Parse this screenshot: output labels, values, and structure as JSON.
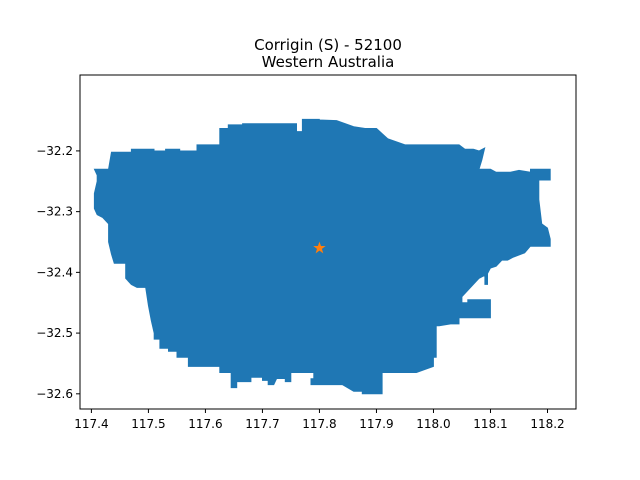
{
  "chart_data": {
    "type": "map",
    "title_line1": "Corrigin (S) - 52100",
    "title_line2": "Western Australia",
    "xlabel": "",
    "ylabel": "",
    "xlim": [
      117.38,
      118.25
    ],
    "ylim": [
      -32.625,
      -32.075
    ],
    "xticks": [
      117.4,
      117.5,
      117.6,
      117.7,
      117.8,
      117.9,
      118.0,
      118.1,
      118.2
    ],
    "xtick_labels": [
      "117.4",
      "117.5",
      "117.6",
      "117.7",
      "117.8",
      "117.9",
      "118.0",
      "118.1",
      "118.2"
    ],
    "yticks": [
      -32.2,
      -32.3,
      -32.4,
      -32.5,
      -32.6
    ],
    "ytick_labels": [
      "−32.2",
      "−32.3",
      "−32.4",
      "−32.5",
      "−32.6"
    ],
    "grid": false,
    "region_color": "#1f77b4",
    "marker_color": "#ff7f0e",
    "marker": {
      "symbol": "star",
      "lon": 117.8,
      "lat": -32.36
    },
    "boundary": [
      [
        117.435,
        -32.202
      ],
      [
        117.47,
        -32.202
      ],
      [
        117.47,
        -32.197
      ],
      [
        117.51,
        -32.197
      ],
      [
        117.51,
        -32.2
      ],
      [
        117.53,
        -32.2
      ],
      [
        117.53,
        -32.197
      ],
      [
        117.555,
        -32.197
      ],
      [
        117.555,
        -32.2
      ],
      [
        117.585,
        -32.2
      ],
      [
        117.585,
        -32.19
      ],
      [
        117.625,
        -32.19
      ],
      [
        117.625,
        -32.163
      ],
      [
        117.64,
        -32.163
      ],
      [
        117.64,
        -32.157
      ],
      [
        117.665,
        -32.157
      ],
      [
        117.665,
        -32.155
      ],
      [
        117.69,
        -32.155
      ],
      [
        117.735,
        -32.155
      ],
      [
        117.76,
        -32.155
      ],
      [
        117.76,
        -32.168
      ],
      [
        117.77,
        -32.168
      ],
      [
        117.77,
        -32.148
      ],
      [
        117.8,
        -32.148
      ],
      [
        117.8,
        -32.149
      ],
      [
        117.83,
        -32.15
      ],
      [
        117.86,
        -32.16
      ],
      [
        117.88,
        -32.163
      ],
      [
        117.9,
        -32.163
      ],
      [
        117.92,
        -32.18
      ],
      [
        117.95,
        -32.19
      ],
      [
        117.98,
        -32.19
      ],
      [
        118.0,
        -32.19
      ],
      [
        118.02,
        -32.19
      ],
      [
        118.045,
        -32.19
      ],
      [
        118.055,
        -32.197
      ],
      [
        118.07,
        -32.197
      ],
      [
        118.08,
        -32.2
      ],
      [
        118.09,
        -32.195
      ],
      [
        118.085,
        -32.215
      ],
      [
        118.08,
        -32.23
      ],
      [
        118.1,
        -32.23
      ],
      [
        118.11,
        -32.235
      ],
      [
        118.135,
        -32.235
      ],
      [
        118.15,
        -32.232
      ],
      [
        118.17,
        -32.235
      ],
      [
        118.17,
        -32.23
      ],
      [
        118.195,
        -32.23
      ],
      [
        118.205,
        -32.23
      ],
      [
        118.205,
        -32.248
      ],
      [
        118.185,
        -32.248
      ],
      [
        118.185,
        -32.28
      ],
      [
        118.19,
        -32.32
      ],
      [
        118.2,
        -32.327
      ],
      [
        118.205,
        -32.345
      ],
      [
        118.205,
        -32.357
      ],
      [
        118.17,
        -32.357
      ],
      [
        118.16,
        -32.368
      ],
      [
        118.14,
        -32.375
      ],
      [
        118.13,
        -32.38
      ],
      [
        118.12,
        -32.38
      ],
      [
        118.11,
        -32.39
      ],
      [
        118.1,
        -32.393
      ],
      [
        118.095,
        -32.402
      ],
      [
        118.095,
        -32.42
      ],
      [
        118.09,
        -32.42
      ],
      [
        118.09,
        -32.405
      ],
      [
        118.08,
        -32.41
      ],
      [
        118.07,
        -32.42
      ],
      [
        118.06,
        -32.43
      ],
      [
        118.05,
        -32.44
      ],
      [
        118.05,
        -32.45
      ],
      [
        118.06,
        -32.45
      ],
      [
        118.06,
        -32.445
      ],
      [
        118.1,
        -32.445
      ],
      [
        118.1,
        -32.475
      ],
      [
        118.045,
        -32.475
      ],
      [
        118.045,
        -32.485
      ],
      [
        118.03,
        -32.485
      ],
      [
        118.01,
        -32.488
      ],
      [
        118.005,
        -32.488
      ],
      [
        118.005,
        -32.54
      ],
      [
        118.0,
        -32.54
      ],
      [
        118.0,
        -32.555
      ],
      [
        117.97,
        -32.565
      ],
      [
        117.945,
        -32.565
      ],
      [
        117.915,
        -32.565
      ],
      [
        117.91,
        -32.565
      ],
      [
        117.91,
        -32.6
      ],
      [
        117.875,
        -32.6
      ],
      [
        117.875,
        -32.596
      ],
      [
        117.86,
        -32.596
      ],
      [
        117.84,
        -32.585
      ],
      [
        117.82,
        -32.585
      ],
      [
        117.785,
        -32.585
      ],
      [
        117.785,
        -32.575
      ],
      [
        117.79,
        -32.575
      ],
      [
        117.79,
        -32.565
      ],
      [
        117.77,
        -32.565
      ],
      [
        117.75,
        -32.565
      ],
      [
        117.75,
        -32.58
      ],
      [
        117.74,
        -32.58
      ],
      [
        117.74,
        -32.575
      ],
      [
        117.725,
        -32.575
      ],
      [
        117.72,
        -32.585
      ],
      [
        117.71,
        -32.585
      ],
      [
        117.71,
        -32.578
      ],
      [
        117.7,
        -32.578
      ],
      [
        117.7,
        -32.573
      ],
      [
        117.68,
        -32.573
      ],
      [
        117.68,
        -32.58
      ],
      [
        117.67,
        -32.58
      ],
      [
        117.655,
        -32.58
      ],
      [
        117.655,
        -32.59
      ],
      [
        117.645,
        -32.59
      ],
      [
        117.645,
        -32.565
      ],
      [
        117.625,
        -32.565
      ],
      [
        117.625,
        -32.555
      ],
      [
        117.57,
        -32.555
      ],
      [
        117.57,
        -32.54
      ],
      [
        117.55,
        -32.54
      ],
      [
        117.55,
        -32.53
      ],
      [
        117.535,
        -32.53
      ],
      [
        117.535,
        -32.525
      ],
      [
        117.52,
        -32.525
      ],
      [
        117.52,
        -32.51
      ],
      [
        117.51,
        -32.51
      ],
      [
        117.51,
        -32.5
      ],
      [
        117.505,
        -32.48
      ],
      [
        117.5,
        -32.455
      ],
      [
        117.495,
        -32.425
      ],
      [
        117.48,
        -32.425
      ],
      [
        117.47,
        -32.42
      ],
      [
        117.46,
        -32.41
      ],
      [
        117.46,
        -32.385
      ],
      [
        117.45,
        -32.385
      ],
      [
        117.44,
        -32.385
      ],
      [
        117.435,
        -32.37
      ],
      [
        117.43,
        -32.35
      ],
      [
        117.43,
        -32.33
      ],
      [
        117.43,
        -32.32
      ],
      [
        117.42,
        -32.31
      ],
      [
        117.41,
        -32.305
      ],
      [
        117.405,
        -32.295
      ],
      [
        117.405,
        -32.27
      ],
      [
        117.41,
        -32.25
      ],
      [
        117.41,
        -32.24
      ],
      [
        117.405,
        -32.23
      ],
      [
        117.43,
        -32.23
      ]
    ]
  }
}
